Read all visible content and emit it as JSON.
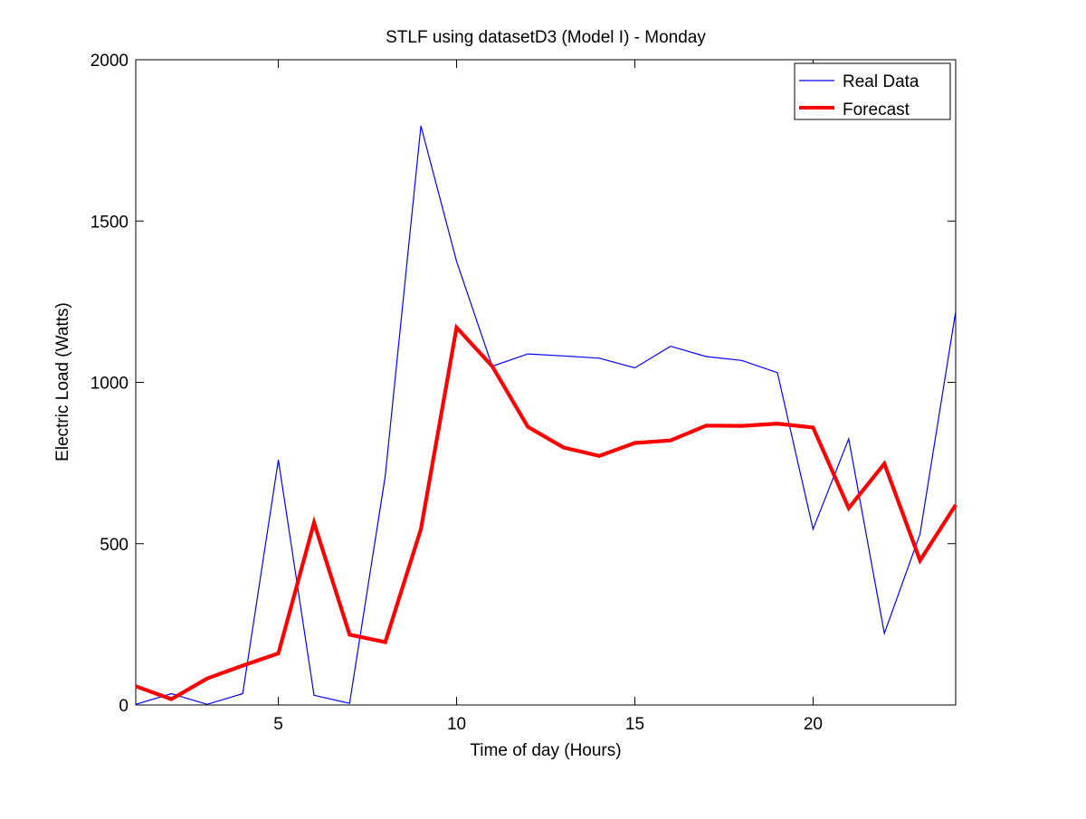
{
  "chart_data": {
    "type": "line",
    "title": "STLF using datasetD3 (Model I) - Monday",
    "xlabel": "Time of day (Hours)",
    "ylabel": "Electric Load (Watts)",
    "xlim": [
      1,
      24
    ],
    "ylim": [
      0,
      2000
    ],
    "x_ticks": [
      5,
      10,
      15,
      20
    ],
    "y_ticks": [
      0,
      500,
      1000,
      1500,
      2000
    ],
    "grid": false,
    "legend_position": "top-right",
    "x": [
      1,
      2,
      3,
      4,
      5,
      6,
      7,
      8,
      9,
      10,
      11,
      12,
      13,
      14,
      15,
      16,
      17,
      18,
      19,
      20,
      21,
      22,
      23,
      24
    ],
    "series": [
      {
        "name": "Real Data",
        "color": "#0000ff",
        "line_style": "thin",
        "values": [
          2,
          35,
          2,
          35,
          760,
          30,
          5,
          710,
          1795,
          1375,
          1050,
          1088,
          1082,
          1075,
          1045,
          1112,
          1080,
          1068,
          1030,
          545,
          825,
          222,
          530,
          1220
        ]
      },
      {
        "name": "Forecast",
        "color": "#ff0000",
        "line_style": "thick",
        "values": [
          58,
          18,
          82,
          122,
          160,
          565,
          218,
          195,
          545,
          1170,
          1050,
          862,
          798,
          772,
          812,
          820,
          866,
          865,
          872,
          860,
          610,
          748,
          448,
          620
        ]
      }
    ]
  }
}
